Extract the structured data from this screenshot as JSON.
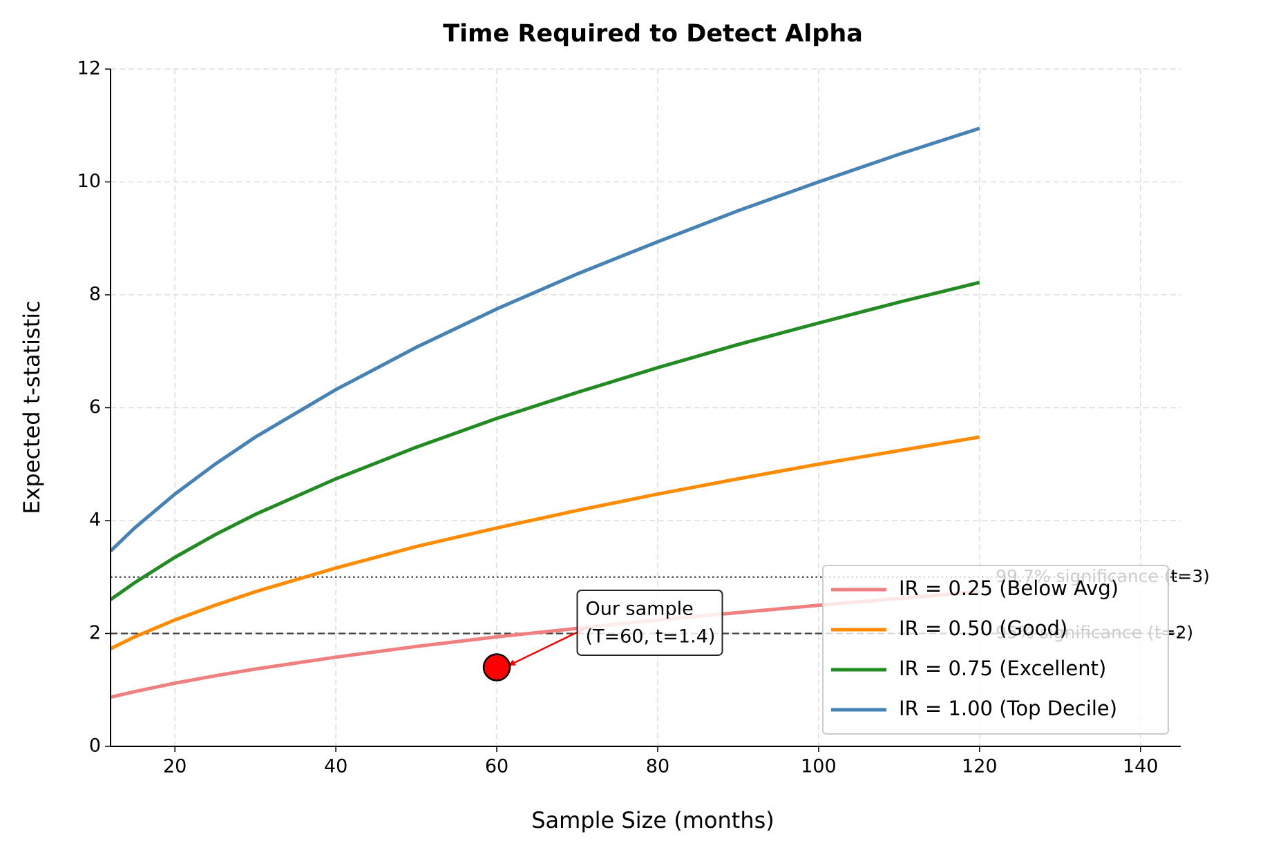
{
  "chart_data": {
    "type": "line",
    "title": "Time Required to Detect Alpha",
    "x_label": "Sample Size (months)",
    "y_label": "Expected t-statistic",
    "x": [
      12,
      15,
      20,
      25,
      30,
      40,
      50,
      60,
      70,
      80,
      90,
      100,
      110,
      120
    ],
    "series": [
      {
        "name": "IR = 0.25 (Below Avg)",
        "color": "#f08080",
        "values": [
          0.87,
          0.97,
          1.12,
          1.25,
          1.37,
          1.58,
          1.77,
          1.94,
          2.09,
          2.24,
          2.37,
          2.5,
          2.62,
          2.74
        ]
      },
      {
        "name": "IR = 0.50 (Good)",
        "color": "#ff8c00",
        "values": [
          1.73,
          1.94,
          2.24,
          2.5,
          2.74,
          3.16,
          3.54,
          3.87,
          4.18,
          4.47,
          4.74,
          5,
          5.24,
          5.48
        ]
      },
      {
        "name": "IR = 0.75 (Excellent)",
        "color": "#228b22",
        "values": [
          2.6,
          2.9,
          3.35,
          3.75,
          4.11,
          4.74,
          5.3,
          5.81,
          6.27,
          6.71,
          7.12,
          7.5,
          7.87,
          8.22
        ]
      },
      {
        "name": "IR = 1.00 (Top Decile)",
        "color": "#4682b4",
        "values": [
          3.46,
          3.87,
          4.47,
          5,
          5.48,
          6.32,
          7.07,
          7.75,
          8.37,
          8.94,
          9.49,
          10,
          10.49,
          10.95
        ]
      }
    ],
    "reference_lines": [
      {
        "y": 3,
        "label": "99.7% significance (t=3)",
        "style": "dotted"
      },
      {
        "y": 2,
        "label": "95% significance (t=2)",
        "style": "dashed"
      }
    ],
    "annotation": {
      "x": 60,
      "y": 1.4,
      "color": "#ff0000",
      "text": [
        "Our sample",
        "(T=60, t=1.4)"
      ]
    },
    "xlim": [
      12,
      145
    ],
    "ylim": [
      0,
      12
    ],
    "xticks": [
      20,
      40,
      60,
      80,
      100,
      120,
      140
    ],
    "yticks": [
      0,
      2,
      4,
      6,
      8,
      10,
      12
    ],
    "grid": true,
    "legend": "lower right"
  }
}
